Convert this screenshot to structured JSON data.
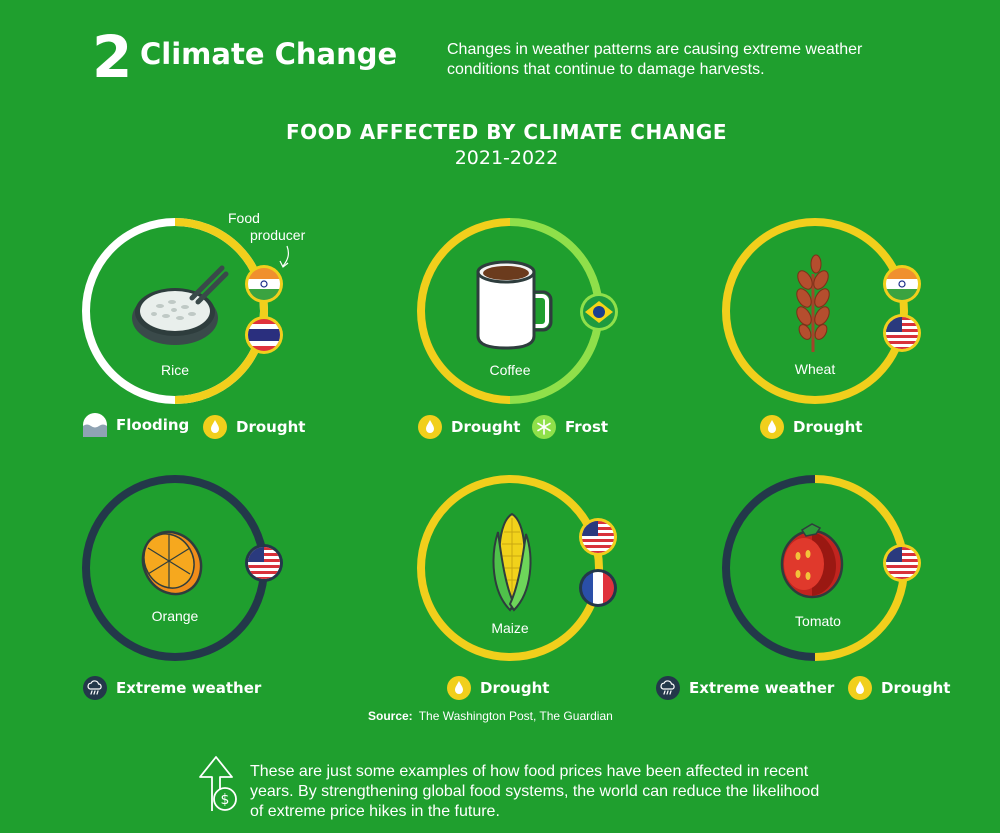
{
  "header": {
    "number": "2",
    "title": "Climate Change",
    "description": "Changes in weather patterns are causing extreme weather conditions that continue to damage harvests."
  },
  "infographic": {
    "heading": "FOOD AFFECTED BY CLIMATE CHANGE",
    "years": "2021-2022",
    "annotation": [
      "Food",
      "producer"
    ],
    "foods": [
      {
        "name": "Rice",
        "producers": [
          "India",
          "Thailand"
        ],
        "conditions": [
          "Flooding",
          "Drought"
        ]
      },
      {
        "name": "Coffee",
        "producers": [
          "Brazil"
        ],
        "conditions": [
          "Drought",
          "Frost"
        ]
      },
      {
        "name": "Wheat",
        "producers": [
          "India",
          "United States"
        ],
        "conditions": [
          "Drought"
        ]
      },
      {
        "name": "Orange",
        "producers": [
          "United States"
        ],
        "conditions": [
          "Extreme weather"
        ]
      },
      {
        "name": "Maize",
        "producers": [
          "United States",
          "France"
        ],
        "conditions": [
          "Drought"
        ]
      },
      {
        "name": "Tomato",
        "producers": [
          "United States"
        ],
        "conditions": [
          "Extreme weather",
          "Drought"
        ]
      }
    ],
    "source_label": "Source:",
    "source_text": "The Washington Post, The Guardian"
  },
  "footer": {
    "text": "These are just some examples of how food prices have been affected in recent years. By strengthening global food systems, the world can reduce the likelihood of extreme price hikes in the future.",
    "icon": "price-up-arrow-dollar-icon"
  },
  "colors": {
    "background": "#1f9f2e",
    "flooding": "#ffffff",
    "drought": "#f1cf1c",
    "frost": "#8fe04a",
    "extreme_weather": "#23384a"
  }
}
